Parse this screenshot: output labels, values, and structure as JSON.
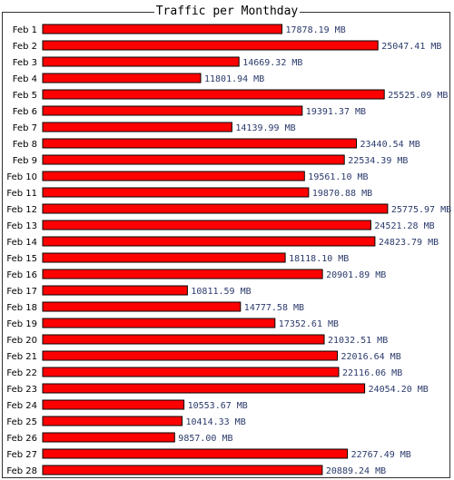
{
  "chart_data": {
    "type": "bar",
    "orientation": "horizontal",
    "title": "Traffic per Monthday",
    "unit": "MB",
    "categories": [
      "Feb 1",
      "Feb 2",
      "Feb 3",
      "Feb 4",
      "Feb 5",
      "Feb 6",
      "Feb 7",
      "Feb 8",
      "Feb 9",
      "Feb 10",
      "Feb 11",
      "Feb 12",
      "Feb 13",
      "Feb 14",
      "Feb 15",
      "Feb 16",
      "Feb 17",
      "Feb 18",
      "Feb 19",
      "Feb 20",
      "Feb 21",
      "Feb 22",
      "Feb 23",
      "Feb 24",
      "Feb 25",
      "Feb 26",
      "Feb 27",
      "Feb 28"
    ],
    "values": [
      17878.19,
      25047.41,
      14669.32,
      11801.94,
      25525.09,
      19391.37,
      14139.99,
      23440.54,
      22534.39,
      19561.1,
      19870.88,
      25775.97,
      24521.28,
      24823.79,
      18118.1,
      20901.89,
      10811.59,
      14777.58,
      17352.61,
      21032.51,
      22016.64,
      22116.06,
      24054.2,
      10553.67,
      10414.33,
      9857.0,
      22767.49,
      20889.24
    ],
    "value_labels": [
      "17878.19 MB",
      "25047.41 MB",
      "14669.32 MB",
      "11801.94 MB",
      "25525.09 MB",
      "19391.37 MB",
      "14139.99 MB",
      "23440.54 MB",
      "22534.39 MB",
      "19561.10 MB",
      "19870.88 MB",
      "25775.97 MB",
      "24521.28 MB",
      "24823.79 MB",
      "18118.10 MB",
      "20901.89 MB",
      "10811.59 MB",
      "14777.58 MB",
      "17352.61 MB",
      "21032.51 MB",
      "22016.64 MB",
      "22116.06 MB",
      "24054.20 MB",
      "10553.67 MB",
      "10414.33 MB",
      "9857.00 MB",
      "22767.49 MB",
      "20889.24 MB"
    ],
    "bar_color": "#ff0000",
    "bar_outline": "#000000",
    "label_color": "#2b3a6b",
    "grid": false,
    "legend": "none"
  }
}
